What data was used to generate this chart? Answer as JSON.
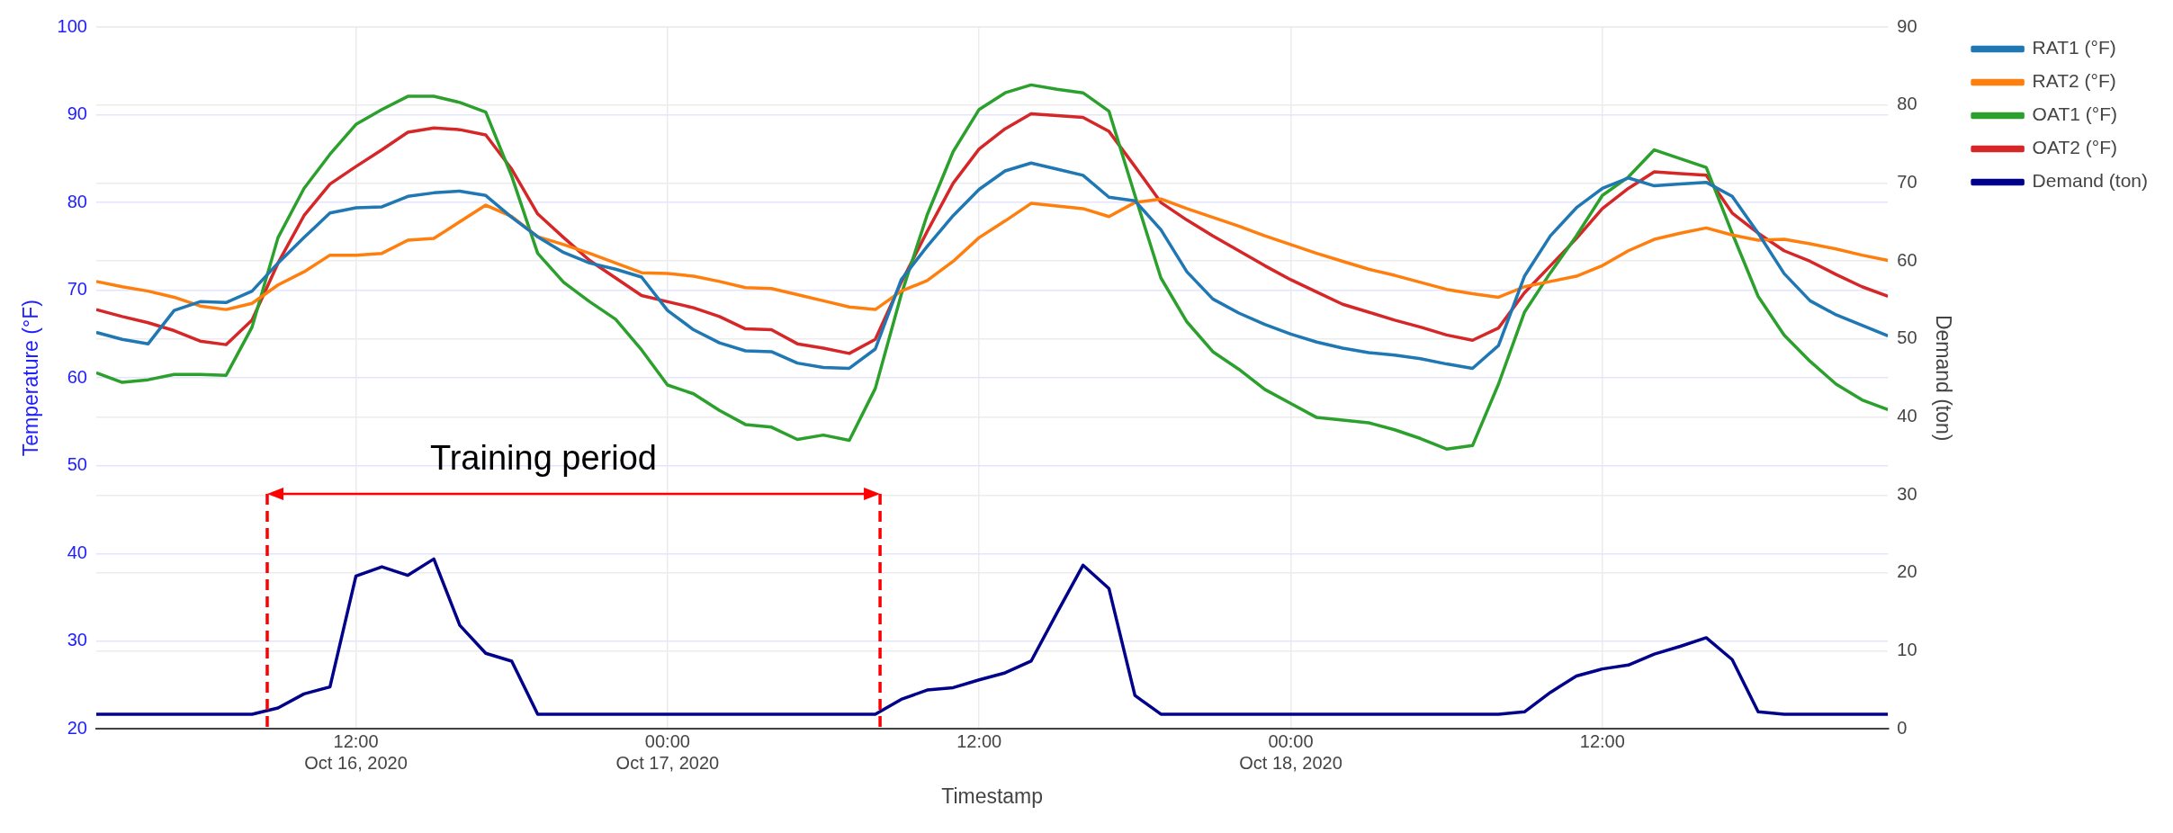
{
  "chart_data": {
    "type": "line",
    "x": [
      "2020-10-16T02:00",
      "2020-10-16T03:00",
      "2020-10-16T04:00",
      "2020-10-16T05:00",
      "2020-10-16T06:00",
      "2020-10-16T07:00",
      "2020-10-16T08:00",
      "2020-10-16T09:00",
      "2020-10-16T10:00",
      "2020-10-16T11:00",
      "2020-10-16T12:00",
      "2020-10-16T13:00",
      "2020-10-16T14:00",
      "2020-10-16T15:00",
      "2020-10-16T16:00",
      "2020-10-16T17:00",
      "2020-10-16T18:00",
      "2020-10-16T19:00",
      "2020-10-16T20:00",
      "2020-10-16T21:00",
      "2020-10-16T22:00",
      "2020-10-16T23:00",
      "2020-10-17T00:00",
      "2020-10-17T01:00",
      "2020-10-17T02:00",
      "2020-10-17T03:00",
      "2020-10-17T04:00",
      "2020-10-17T05:00",
      "2020-10-17T06:00",
      "2020-10-17T07:00",
      "2020-10-17T08:00",
      "2020-10-17T09:00",
      "2020-10-17T10:00",
      "2020-10-17T11:00",
      "2020-10-17T12:00",
      "2020-10-17T13:00",
      "2020-10-17T14:00",
      "2020-10-17T15:00",
      "2020-10-17T16:00",
      "2020-10-17T17:00",
      "2020-10-17T18:00",
      "2020-10-17T19:00",
      "2020-10-17T20:00",
      "2020-10-17T21:00",
      "2020-10-17T22:00",
      "2020-10-17T23:00",
      "2020-10-18T00:00",
      "2020-10-18T01:00",
      "2020-10-18T02:00",
      "2020-10-18T03:00",
      "2020-10-18T04:00",
      "2020-10-18T05:00",
      "2020-10-18T06:00",
      "2020-10-18T07:00",
      "2020-10-18T08:00",
      "2020-10-18T09:00",
      "2020-10-18T10:00",
      "2020-10-18T11:00",
      "2020-10-18T12:00",
      "2020-10-18T13:00",
      "2020-10-18T14:00",
      "2020-10-18T15:00",
      "2020-10-18T16:00",
      "2020-10-18T17:00",
      "2020-10-18T18:00",
      "2020-10-18T19:00",
      "2020-10-18T20:00",
      "2020-10-18T21:00",
      "2020-10-18T22:00",
      "2020-10-18T23:00"
    ],
    "series": [
      {
        "name": "RAT1 (°F)",
        "color": "#1f77b4",
        "values": [
          65.2,
          64.4,
          63.9,
          67.7,
          68.7,
          68.6,
          69.9,
          73.1,
          76.0,
          78.8,
          79.4,
          79.5,
          80.7,
          81.1,
          81.3,
          80.8,
          78.3,
          76.1,
          74.3,
          73.1,
          72.4,
          71.5,
          67.7,
          65.5,
          64.0,
          63.1,
          63.0,
          61.7,
          61.2,
          61.1,
          63.3,
          71.2,
          75.0,
          78.5,
          81.5,
          83.6,
          84.5,
          83.8,
          83.1,
          80.6,
          80.2,
          76.9,
          72.1,
          69.0,
          67.4,
          66.1,
          65.0,
          64.1,
          63.4,
          62.9,
          62.6,
          62.2,
          61.6,
          61.1,
          63.7,
          71.6,
          76.2,
          79.4,
          81.6,
          82.8,
          81.9,
          82.1,
          82.3,
          80.7,
          76.5,
          71.9,
          68.8,
          67.2,
          66.0,
          64.8
        ]
      },
      {
        "name": "RAT2 (°F)",
        "color": "#ff7f0e",
        "values": [
          71.0,
          70.4,
          69.9,
          69.2,
          68.2,
          67.8,
          68.5,
          70.6,
          72.1,
          74.0,
          74.0,
          74.2,
          75.7,
          75.9,
          77.8,
          79.7,
          78.4,
          76.1,
          75.2,
          74.2,
          73.1,
          72.0,
          71.9,
          71.6,
          71.0,
          70.3,
          70.2,
          69.5,
          68.8,
          68.1,
          67.8,
          69.9,
          71.1,
          73.3,
          76.0,
          77.9,
          79.9,
          79.6,
          79.3,
          78.4,
          80.0,
          80.4,
          79.3,
          78.3,
          77.3,
          76.2,
          75.2,
          74.2,
          73.3,
          72.4,
          71.7,
          70.9,
          70.1,
          69.6,
          69.2,
          70.4,
          71.0,
          71.6,
          72.8,
          74.5,
          75.8,
          76.5,
          77.1,
          76.3,
          75.7,
          75.8,
          75.3,
          74.7,
          74.0,
          73.4
        ]
      },
      {
        "name": "OAT1 (°F)",
        "color": "#2ca02c",
        "values": [
          60.6,
          59.5,
          59.8,
          60.4,
          60.4,
          60.3,
          65.8,
          76.0,
          81.6,
          85.5,
          88.9,
          90.6,
          92.1,
          92.1,
          91.4,
          90.3,
          83.0,
          74.2,
          70.9,
          68.7,
          66.7,
          63.2,
          59.2,
          58.2,
          56.3,
          54.7,
          54.4,
          53.0,
          53.5,
          52.9,
          58.8,
          69.5,
          78.6,
          85.8,
          90.6,
          92.5,
          93.4,
          92.9,
          92.5,
          90.4,
          80.8,
          71.4,
          66.4,
          63.0,
          61.0,
          58.7,
          57.1,
          55.5,
          55.2,
          54.9,
          54.1,
          53.1,
          51.9,
          52.3,
          59.3,
          67.5,
          72.0,
          76.2,
          80.8,
          82.9,
          86.0,
          85.0,
          84.0,
          76.5,
          69.3,
          64.9,
          61.9,
          59.3,
          57.5,
          56.4
        ]
      },
      {
        "name": "OAT2 (°F)",
        "color": "#d62728",
        "values": [
          67.8,
          67.0,
          66.3,
          65.4,
          64.2,
          63.8,
          66.6,
          73.1,
          78.5,
          82.1,
          84.1,
          86.0,
          88.0,
          88.5,
          88.3,
          87.7,
          83.8,
          78.7,
          76.0,
          73.4,
          71.4,
          69.4,
          68.7,
          68.0,
          67.0,
          65.6,
          65.5,
          63.9,
          63.4,
          62.8,
          64.4,
          70.9,
          76.7,
          82.2,
          86.1,
          88.4,
          90.1,
          89.9,
          89.7,
          88.1,
          84.1,
          80.0,
          78.0,
          76.2,
          74.5,
          72.8,
          71.2,
          69.8,
          68.4,
          67.5,
          66.6,
          65.8,
          64.9,
          64.3,
          65.7,
          69.7,
          72.8,
          75.9,
          79.3,
          81.6,
          83.5,
          83.3,
          83.1,
          78.8,
          76.5,
          74.5,
          73.3,
          71.8,
          70.4,
          69.3
        ]
      },
      {
        "name": "Demand (ton)",
        "color": "#00008b",
        "axis": "y2",
        "values": [
          1.9,
          1.9,
          1.9,
          1.9,
          1.9,
          1.9,
          1.9,
          2.7,
          4.5,
          5.4,
          19.6,
          20.8,
          19.7,
          21.8,
          13.3,
          9.7,
          8.7,
          1.9,
          1.9,
          1.9,
          1.9,
          1.9,
          1.9,
          1.9,
          1.9,
          1.9,
          1.9,
          1.9,
          1.9,
          1.9,
          1.9,
          3.8,
          5.0,
          5.3,
          6.3,
          7.2,
          8.7,
          14.9,
          21.0,
          18.0,
          4.3,
          1.9,
          1.9,
          1.9,
          1.9,
          1.9,
          1.9,
          1.9,
          1.9,
          1.9,
          1.9,
          1.9,
          1.9,
          1.9,
          1.9,
          2.2,
          4.7,
          6.8,
          7.7,
          8.2,
          9.6,
          10.6,
          11.7,
          8.9,
          2.2,
          1.9,
          1.9,
          1.9,
          1.9,
          1.9
        ]
      }
    ],
    "xlabel": "Timestamp",
    "ylabel": "Temperature (°F)",
    "y2label": "Demand (ton)",
    "xlim": [
      "2020-10-16T02:00",
      "2020-10-18T23:00"
    ],
    "xticks": [
      {
        "value": "2020-10-16T12:00",
        "label": "12:00\nOct 16, 2020"
      },
      {
        "value": "2020-10-17T00:00",
        "label": "00:00\nOct 17, 2020"
      },
      {
        "value": "2020-10-17T12:00",
        "label": "12:00"
      },
      {
        "value": "2020-10-18T00:00",
        "label": "00:00\nOct 18, 2020"
      },
      {
        "value": "2020-10-18T12:00",
        "label": "12:00"
      }
    ],
    "ylim": [
      20,
      100
    ],
    "yticks": [
      20,
      30,
      40,
      50,
      60,
      70,
      80,
      90,
      100
    ],
    "y2lim": [
      0,
      90
    ],
    "y2ticks": [
      0,
      10,
      20,
      30,
      40,
      50,
      60,
      70,
      80,
      90
    ],
    "ref_lines": [
      {
        "axis": "x",
        "value": "2020-10-16T08:36",
        "color": "#ff0000",
        "line_style": "dashed"
      },
      {
        "axis": "x",
        "value": "2020-10-17T08:12",
        "color": "#ff0000",
        "line_style": "dashed"
      }
    ],
    "annotations": [
      "Training period"
    ],
    "grid": true,
    "legend": "top right",
    "marker": "none"
  }
}
